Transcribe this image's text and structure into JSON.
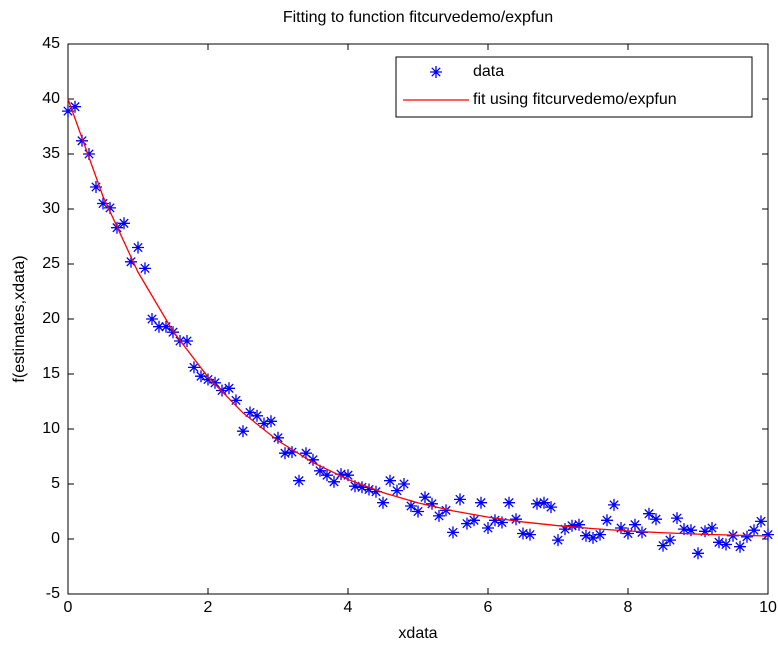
{
  "chart_data": {
    "type": "scatter",
    "title": "Fitting to function fitcurvedemo/expfun",
    "x_label": "xdata",
    "y_label": "f(estimates,xdata)",
    "xlim": [
      0,
      10
    ],
    "xticks": [
      0,
      2,
      4,
      6,
      8,
      10
    ],
    "ylim": [
      -5,
      45
    ],
    "yticks": [
      -5,
      0,
      5,
      10,
      15,
      20,
      25,
      30,
      35,
      40,
      45
    ],
    "grid": false,
    "legend": "top-right",
    "series": [
      {
        "name": "data",
        "mode": "markers",
        "color": "#0000ff",
        "x": [
          0,
          0.1,
          0.2,
          0.3,
          0.4,
          0.5,
          0.6,
          0.7,
          0.8,
          0.9,
          1,
          1.1,
          1.2,
          1.3,
          1.4,
          1.5,
          1.6,
          1.7,
          1.8,
          1.9,
          2,
          2.1,
          2.2,
          2.3,
          2.4,
          2.5,
          2.6,
          2.7,
          2.8,
          2.9,
          3,
          3.1,
          3.2,
          3.3,
          3.4,
          3.5,
          3.6,
          3.7,
          3.8,
          3.9,
          4,
          4.1,
          4.2,
          4.3,
          4.4,
          4.5,
          4.6,
          4.7,
          4.8,
          4.9,
          5,
          5.1,
          5.2,
          5.3,
          5.4,
          5.5,
          5.6,
          5.7,
          5.8,
          5.9,
          6,
          6.1,
          6.2,
          6.3,
          6.4,
          6.5,
          6.6,
          6.7,
          6.8,
          6.9,
          7,
          7.1,
          7.2,
          7.3,
          7.4,
          7.5,
          7.6,
          7.7,
          7.8,
          7.9,
          8,
          8.1,
          8.2,
          8.3,
          8.4,
          8.5,
          8.6,
          8.7,
          8.8,
          8.9,
          9,
          9.1,
          9.2,
          9.3,
          9.4,
          9.5,
          9.6,
          9.7,
          9.8,
          9.9,
          10
        ],
        "values": [
          38.9,
          39.3,
          36.2,
          35,
          32,
          30.5,
          30.1,
          28.3,
          28.7,
          25.2,
          26.5,
          24.6,
          20,
          19.3,
          19.3,
          18.8,
          18,
          18,
          15.6,
          14.8,
          14.5,
          14.2,
          13.5,
          13.7,
          12.6,
          9.8,
          11.5,
          11.2,
          10.5,
          10.7,
          9.2,
          7.8,
          7.9,
          5.3,
          7.8,
          7.2,
          6.2,
          5.8,
          5.2,
          5.9,
          5.8,
          4.8,
          4.7,
          4.5,
          4.3,
          3.3,
          5.3,
          4.4,
          5,
          3,
          2.5,
          3.8,
          3.2,
          2.1,
          2.6,
          0.6,
          3.6,
          1.4,
          1.7,
          3.3,
          1,
          1.7,
          1.5,
          3.3,
          1.8,
          0.5,
          0.4,
          3.2,
          3.3,
          2.9,
          -0.1,
          0.9,
          1.2,
          1.3,
          0.3,
          0.1,
          0.4,
          1.7,
          3.1,
          1,
          0.5,
          1.3,
          0.6,
          2.3,
          1.8,
          -0.6,
          -0.1,
          1.9,
          0.9,
          0.8,
          -1.3,
          0.7,
          1,
          -0.3,
          -0.5,
          0.3,
          -0.7,
          0.2,
          0.8,
          1.6,
          0.4
        ]
      },
      {
        "name": "fit using fitcurvedemo/expfun",
        "mode": "line",
        "color": "#ff0000",
        "x": [
          0,
          0.5,
          1,
          1.5,
          2,
          2.5,
          3,
          3.5,
          4,
          4.5,
          5,
          5.5,
          6,
          6.5,
          7,
          7.5,
          8,
          8.5,
          9,
          9.5,
          10
        ],
        "values": [
          40,
          31.15,
          24.26,
          18.89,
          14.72,
          11.46,
          8.93,
          6.95,
          5.41,
          4.22,
          3.28,
          2.56,
          1.99,
          1.55,
          1.21,
          0.94,
          0.73,
          0.57,
          0.44,
          0.35,
          0.27
        ]
      }
    ]
  }
}
